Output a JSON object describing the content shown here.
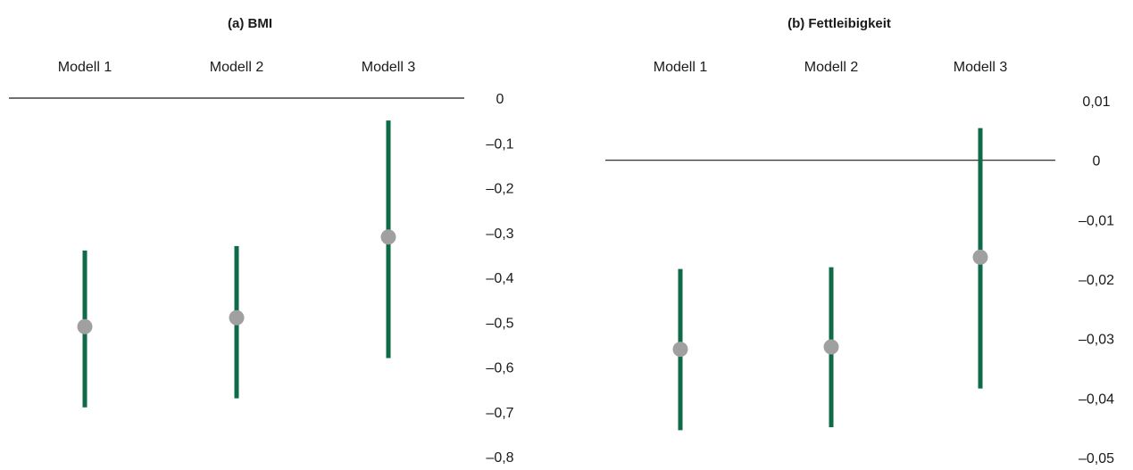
{
  "chart_data": [
    {
      "type": "errorbar",
      "title": "(a) BMI",
      "categories": [
        "Modell 1",
        "Modell 2",
        "Modell 3"
      ],
      "ylim": [
        -0.8,
        0
      ],
      "yticks": [
        0,
        -0.1,
        -0.2,
        -0.3,
        -0.4,
        -0.5,
        -0.6,
        -0.7,
        -0.8
      ],
      "ytick_labels": [
        "0",
        "–0,1",
        "–0,2",
        "–0,3",
        "–0,4",
        "–0,5",
        "–0,6",
        "–0,7",
        "–0,8"
      ],
      "y_axis_position": "right",
      "x_axis_position": "top",
      "reference_line": 0,
      "points": [
        {
          "category": "Modell 1",
          "estimate": -0.51,
          "lower": -0.69,
          "upper": -0.34
        },
        {
          "category": "Modell 2",
          "estimate": -0.49,
          "lower": -0.67,
          "upper": -0.33
        },
        {
          "category": "Modell 3",
          "estimate": -0.31,
          "lower": -0.58,
          "upper": -0.05
        }
      ],
      "colors": {
        "interval": "#0e6a47",
        "point": "#a0a0a0",
        "axis": "#1a1a1a"
      }
    },
    {
      "type": "errorbar",
      "title": "(b) Fettleibigkeit",
      "categories": [
        "Modell 1",
        "Modell 2",
        "Modell 3"
      ],
      "ylim": [
        -0.05,
        0.01
      ],
      "yticks": [
        0.01,
        0,
        -0.01,
        -0.02,
        -0.03,
        -0.04,
        -0.05
      ],
      "ytick_labels": [
        "0,01",
        "0",
        "–0,01",
        "–0,02",
        "–0,03",
        "–0,04",
        "–0,05"
      ],
      "y_axis_position": "right",
      "x_axis_position": "top",
      "reference_line": 0,
      "points": [
        {
          "category": "Modell 1",
          "estimate": -0.0318,
          "lower": -0.0454,
          "upper": -0.0183
        },
        {
          "category": "Modell 2",
          "estimate": -0.0314,
          "lower": -0.0449,
          "upper": -0.018
        },
        {
          "category": "Modell 3",
          "estimate": -0.0163,
          "lower": -0.0384,
          "upper": 0.0054
        }
      ],
      "colors": {
        "interval": "#0e6a47",
        "point": "#a0a0a0",
        "axis": "#1a1a1a"
      }
    }
  ]
}
